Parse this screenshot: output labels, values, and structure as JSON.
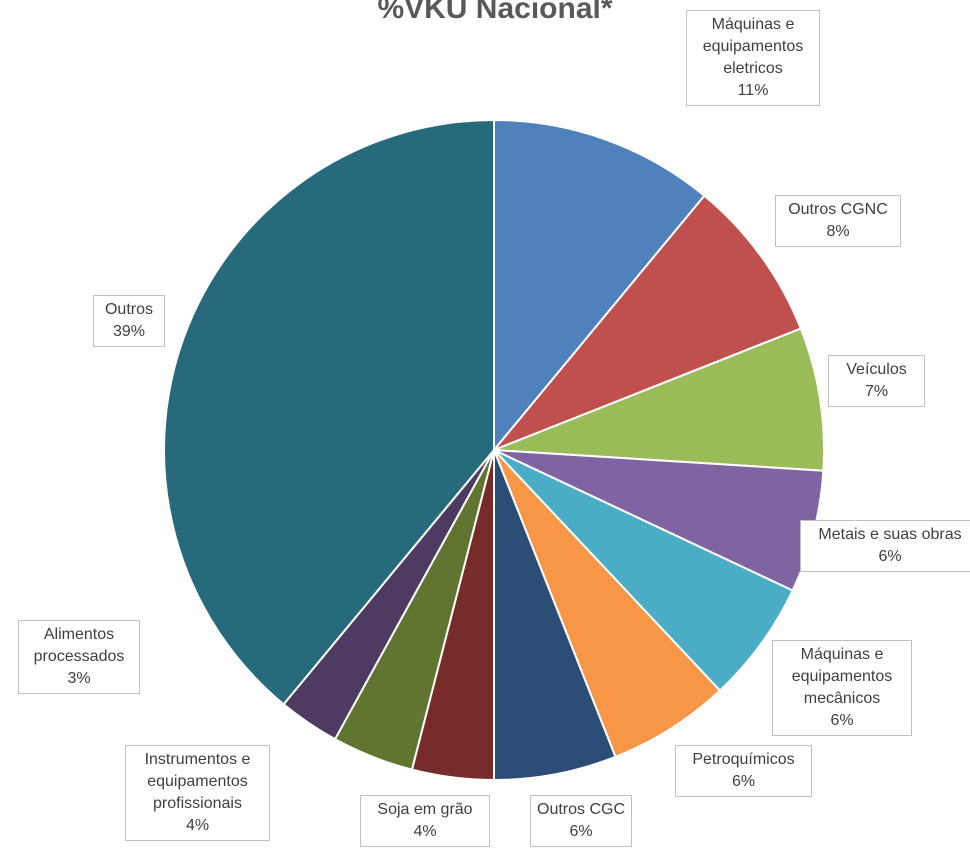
{
  "chart_data": {
    "type": "pie",
    "title": "%VKU Nacional*",
    "categories": [
      "Máquinas e equipamentos eletricos",
      "Outros CGNC",
      "Veículos",
      "Metais e suas obras",
      "Máquinas e equipamentos mecânicos",
      "Petroquímicos",
      "Outros CGC",
      "Soja em grão",
      "Instrumentos e equipamentos profissionais",
      "Alimentos processados",
      "Outros"
    ],
    "values": [
      11,
      8,
      7,
      6,
      6,
      6,
      6,
      4,
      4,
      3,
      39
    ],
    "value_labels": [
      "11%",
      "8%",
      "7%",
      "6%",
      "6%",
      "6%",
      "6%",
      "4%",
      "4%",
      "3%",
      "39%"
    ],
    "colors": [
      "#4f81bd",
      "#c0504d",
      "#9bbb59",
      "#8064a2",
      "#4bacc6",
      "#f79646",
      "#2c4d75",
      "#772c2a",
      "#5f7530",
      "#4d3b62",
      "#276a7c"
    ]
  }
}
